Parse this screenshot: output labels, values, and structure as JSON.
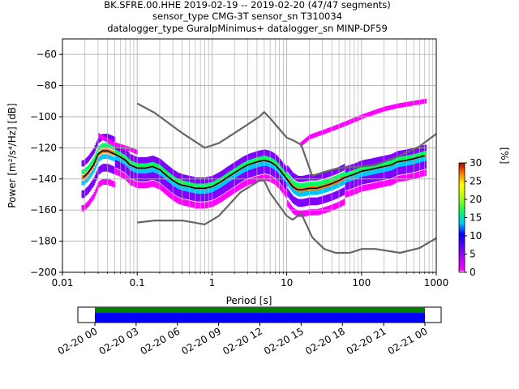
{
  "chart_data": {
    "type": "heatmap",
    "title_lines": [
      "BK.SFRE.00.HHE   2019-02-19 -- 2019-02-20  (47/47 segments)",
      "sensor_type CMG-3T sensor_sn T310034",
      "datalogger_type GuralpMinimus+ datalogger_sn MINP-DF59"
    ],
    "xlabel": "Period [s]",
    "ylabel": "Power [m²/s⁴/Hz] [dB]",
    "xscale": "log",
    "xlim": [
      0.01,
      1000
    ],
    "ylim": [
      -200,
      -50
    ],
    "x_ticks": [
      0.01,
      0.1,
      1,
      10,
      100,
      1000
    ],
    "x_tick_labels": [
      "0.01",
      "0.1",
      "1",
      "10",
      "100",
      "1000"
    ],
    "y_ticks": [
      -200,
      -180,
      -160,
      -140,
      -120,
      -100,
      -80,
      -60
    ],
    "y_tick_labels": [
      "−200",
      "−180",
      "−160",
      "−140",
      "−120",
      "−100",
      "−80",
      "−60"
    ],
    "grid": true,
    "colorbar": {
      "label": "[%]",
      "range": [
        0,
        30
      ],
      "ticks": [
        0,
        5,
        10,
        15,
        20,
        25,
        30
      ],
      "tick_labels": [
        "0",
        "5",
        "10",
        "15",
        "20",
        "25",
        "30"
      ]
    },
    "series": [
      {
        "role": "mean",
        "color": "#000000",
        "x": [
          0.019,
          0.022,
          0.026,
          0.03,
          0.034,
          0.04,
          0.05,
          0.06,
          0.07,
          0.08,
          0.1,
          0.13,
          0.16,
          0.2,
          0.25,
          0.3,
          0.35,
          0.4,
          0.5,
          0.6,
          0.7,
          0.8,
          1.0,
          1.3,
          1.6,
          2.0,
          2.5,
          3.0,
          4.0,
          5.0,
          6.0,
          7.0,
          8.0,
          10,
          12,
          14,
          16,
          20,
          25,
          30,
          40,
          50,
          60,
          80,
          100,
          130,
          160,
          200,
          250,
          300,
          400,
          500,
          700
        ],
        "y": [
          -139,
          -136,
          -131,
          -124,
          -122,
          -122,
          -124,
          -126,
          -128,
          -131,
          -133,
          -133,
          -132,
          -134,
          -138,
          -141,
          -143,
          -144,
          -145,
          -146,
          -146,
          -146,
          -145,
          -142,
          -139,
          -136,
          -133,
          -131,
          -129,
          -128,
          -129,
          -131,
          -134,
          -140,
          -145,
          -147,
          -147,
          -146,
          -146,
          -145,
          -143,
          -141,
          -139,
          -137,
          -135,
          -134,
          -133,
          -132,
          -131,
          -129,
          -128,
          -127,
          -125
        ]
      },
      {
        "role": "high-noise-model",
        "color": "#666666",
        "x": [
          0.1,
          0.17,
          0.4,
          0.8,
          1.24,
          2.4,
          4.3,
          5.0,
          6.0,
          10,
          12,
          15.6,
          21.9,
          31.6,
          45,
          70,
          101,
          154,
          328,
          600,
          1000
        ],
        "y": [
          -91.5,
          -97.4,
          -110.5,
          -120,
          -117,
          -108,
          -100,
          -97,
          -101,
          -113.5,
          -115,
          -118,
          -138,
          -135.5,
          -133.5,
          -132.5,
          -132,
          -131,
          -125,
          -119,
          -111
        ]
      },
      {
        "role": "low-noise-model",
        "color": "#666666",
        "x": [
          0.1,
          0.17,
          0.4,
          0.8,
          1.24,
          2.4,
          4.3,
          5.0,
          6.0,
          10,
          12,
          15.6,
          21.9,
          31.6,
          45,
          70,
          101,
          154,
          328,
          600,
          1000
        ],
        "y": [
          -168,
          -166.7,
          -166.7,
          -169.2,
          -163.7,
          -148.6,
          -141.1,
          -141.1,
          -149,
          -163.8,
          -166.2,
          -162.1,
          -177.5,
          -185,
          -187.5,
          -187.5,
          -185,
          -185,
          -187.5,
          -184.4,
          -178
        ]
      }
    ],
    "density_bands": [
      {
        "y_offset": 0,
        "spread": 3,
        "level": 28
      },
      {
        "y_offset": 2,
        "spread": 3,
        "level": 20
      },
      {
        "y_offset": -2,
        "spread": 3,
        "level": 14
      },
      {
        "y_offset": 5,
        "spread": 4,
        "level": 8
      },
      {
        "y_offset": -6,
        "spread": 5,
        "level": 5
      },
      {
        "y_offset": -11,
        "spread": 4,
        "level": 2
      }
    ],
    "upper_band": {
      "x": [
        0.03,
        0.05,
        0.08,
        0.1,
        15,
        20,
        30,
        50,
        80,
        100,
        150,
        200,
        300,
        400,
        700
      ],
      "y": [
        -112,
        -118,
        -121,
        -123,
        -118,
        -113,
        -110,
        -106,
        -102,
        -100,
        -97,
        -95,
        -93,
        -92,
        -90
      ],
      "level": 1
    }
  },
  "timeline": {
    "tick_labels": [
      "02-20 00",
      "02-20 03",
      "02-20 06",
      "02-20 09",
      "02-20 12",
      "02-20 15",
      "02-20 18",
      "02-20 21",
      "02-21 00"
    ],
    "coverage_color": "#008000",
    "data_color": "#0000ff"
  }
}
